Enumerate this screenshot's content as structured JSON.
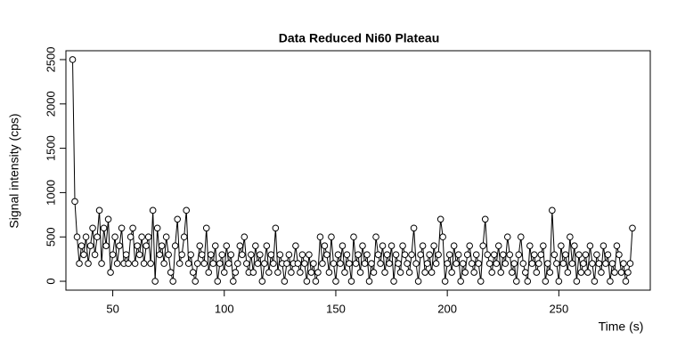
{
  "chart_data": {
    "type": "line",
    "title": "Data Reduced Ni60 Plateau",
    "xlabel": "Time (s)",
    "ylabel": "Signal intensity (cps)",
    "x": [
      32,
      33,
      34,
      35,
      36,
      37,
      38,
      39,
      40,
      41,
      42,
      43,
      44,
      45,
      46,
      47,
      48,
      49,
      50,
      51,
      52,
      53,
      54,
      55,
      56,
      57,
      58,
      59,
      60,
      61,
      62,
      63,
      64,
      65,
      66,
      67,
      68,
      69,
      70,
      71,
      72,
      73,
      74,
      75,
      76,
      77,
      78,
      79,
      80,
      81,
      82,
      83,
      84,
      85,
      86,
      87,
      88,
      89,
      90,
      91,
      92,
      93,
      94,
      95,
      96,
      97,
      98,
      99,
      100,
      101,
      102,
      103,
      104,
      105,
      106,
      107,
      108,
      109,
      110,
      111,
      112,
      113,
      114,
      115,
      116,
      117,
      118,
      119,
      120,
      121,
      122,
      123,
      124,
      125,
      126,
      127,
      128,
      129,
      130,
      131,
      132,
      133,
      134,
      135,
      136,
      137,
      138,
      139,
      140,
      141,
      142,
      143,
      144,
      145,
      146,
      147,
      148,
      149,
      150,
      151,
      152,
      153,
      154,
      155,
      156,
      157,
      158,
      159,
      160,
      161,
      162,
      163,
      164,
      165,
      166,
      167,
      168,
      169,
      170,
      171,
      172,
      173,
      174,
      175,
      176,
      177,
      178,
      179,
      180,
      181,
      182,
      183,
      184,
      185,
      186,
      187,
      188,
      189,
      190,
      191,
      192,
      193,
      194,
      195,
      196,
      197,
      198,
      199,
      200,
      201,
      202,
      203,
      204,
      205,
      206,
      207,
      208,
      209,
      210,
      211,
      212,
      213,
      214,
      215,
      216,
      217,
      218,
      219,
      220,
      221,
      222,
      223,
      224,
      225,
      226,
      227,
      228,
      229,
      230,
      231,
      232,
      233,
      234,
      235,
      236,
      237,
      238,
      239,
      240,
      241,
      242,
      243,
      244,
      245,
      246,
      247,
      248,
      249,
      250,
      251,
      252,
      253,
      254,
      255,
      256,
      257,
      258,
      259,
      260,
      261,
      262,
      263,
      264,
      265,
      266,
      267,
      268,
      269,
      270,
      271,
      272,
      273,
      274,
      275,
      276,
      277,
      278,
      279,
      280,
      281,
      282,
      283
    ],
    "series": [
      {
        "color": "#000000",
        "values": [
          2500,
          900,
          500,
          200,
          400,
          300,
          500,
          200,
          400,
          600,
          300,
          500,
          800,
          200,
          600,
          400,
          700,
          100,
          300,
          500,
          200,
          400,
          600,
          200,
          300,
          200,
          500,
          600,
          200,
          400,
          300,
          500,
          200,
          400,
          500,
          200,
          800,
          0,
          600,
          300,
          400,
          200,
          500,
          300,
          100,
          0,
          400,
          700,
          200,
          300,
          500,
          800,
          200,
          300,
          100,
          0,
          200,
          400,
          300,
          200,
          600,
          100,
          300,
          200,
          400,
          0,
          200,
          300,
          100,
          400,
          200,
          300,
          0,
          100,
          200,
          400,
          300,
          500,
          200,
          100,
          300,
          100,
          400,
          200,
          300,
          0,
          200,
          400,
          100,
          300,
          200,
          600,
          100,
          300,
          200,
          0,
          200,
          300,
          100,
          200,
          400,
          200,
          100,
          300,
          200,
          0,
          300,
          100,
          200,
          0,
          100,
          500,
          200,
          400,
          300,
          100,
          500,
          200,
          0,
          300,
          200,
          400,
          100,
          300,
          200,
          0,
          500,
          200,
          300,
          100,
          400,
          200,
          300,
          0,
          200,
          100,
          500,
          300,
          200,
          400,
          100,
          300,
          200,
          400,
          0,
          300,
          200,
          100,
          400,
          300,
          200,
          100,
          300,
          600,
          200,
          0,
          300,
          400,
          100,
          200,
          300,
          100,
          400,
          200,
          300,
          700,
          500,
          0,
          200,
          300,
          100,
          400,
          200,
          300,
          0,
          200,
          100,
          300,
          400,
          200,
          100,
          300,
          200,
          0,
          400,
          700,
          300,
          200,
          100,
          300,
          200,
          400,
          100,
          300,
          200,
          500,
          300,
          100,
          200,
          0,
          300,
          500,
          200,
          100,
          0,
          400,
          200,
          300,
          100,
          200,
          300,
          400,
          0,
          200,
          100,
          800,
          300,
          200,
          0,
          400,
          200,
          300,
          100,
          500,
          200,
          400,
          0,
          300,
          100,
          200,
          300,
          100,
          400,
          200,
          0,
          300,
          200,
          100,
          400,
          200,
          300,
          0,
          200,
          100,
          400,
          300,
          100,
          200,
          0,
          100,
          200,
          600
        ]
      }
    ],
    "xlim": [
      29,
      291
    ],
    "ylim": [
      -100,
      2600
    ],
    "xticks": [
      50,
      100,
      150,
      200,
      250
    ],
    "yticks": [
      0,
      500,
      1000,
      1500,
      2000,
      2500
    ]
  }
}
